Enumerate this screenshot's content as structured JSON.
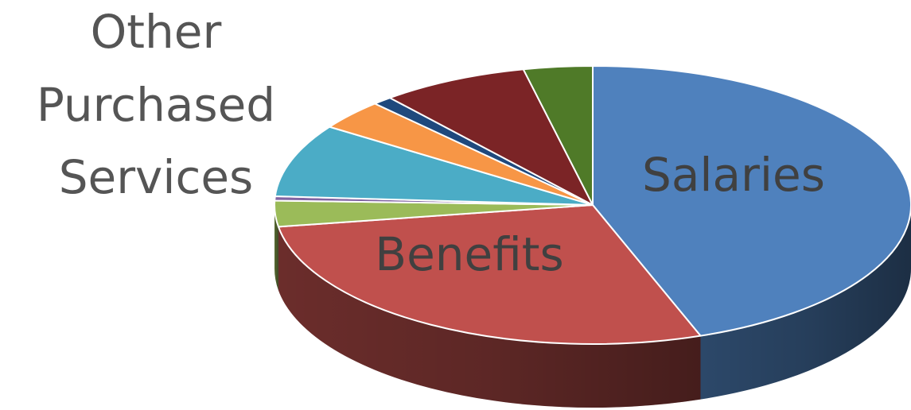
{
  "chart_data": {
    "type": "pie",
    "style": "3d",
    "title": "",
    "slices": [
      {
        "name": "Salaries",
        "value": 44.5,
        "color": "#4F81BD",
        "label": "Salaries"
      },
      {
        "name": "Benefits",
        "value": 28.0,
        "color": "#C0504D",
        "label": "Benefits"
      },
      {
        "name": "slice-3",
        "value": 3.0,
        "color": "#9BBB59",
        "label": ""
      },
      {
        "name": "slice-4",
        "value": 0.5,
        "color": "#8064A2",
        "label": ""
      },
      {
        "name": "Other Purchased Services",
        "value": 8.5,
        "color": "#4BACC6",
        "label": "Other Purchased Services"
      },
      {
        "name": "slice-6",
        "value": 3.5,
        "color": "#F79646",
        "label": ""
      },
      {
        "name": "slice-7",
        "value": 1.0,
        "color": "#1F497D",
        "label": ""
      },
      {
        "name": "slice-8",
        "value": 7.5,
        "color": "#7B2426",
        "label": ""
      },
      {
        "name": "slice-9",
        "value": 3.5,
        "color": "#4F7A28",
        "label": ""
      }
    ],
    "labels": {
      "salaries": "Salaries",
      "benefits": "Benefits",
      "other_line1": "Other",
      "other_line2": "Purchased",
      "other_line3": "Services"
    }
  }
}
